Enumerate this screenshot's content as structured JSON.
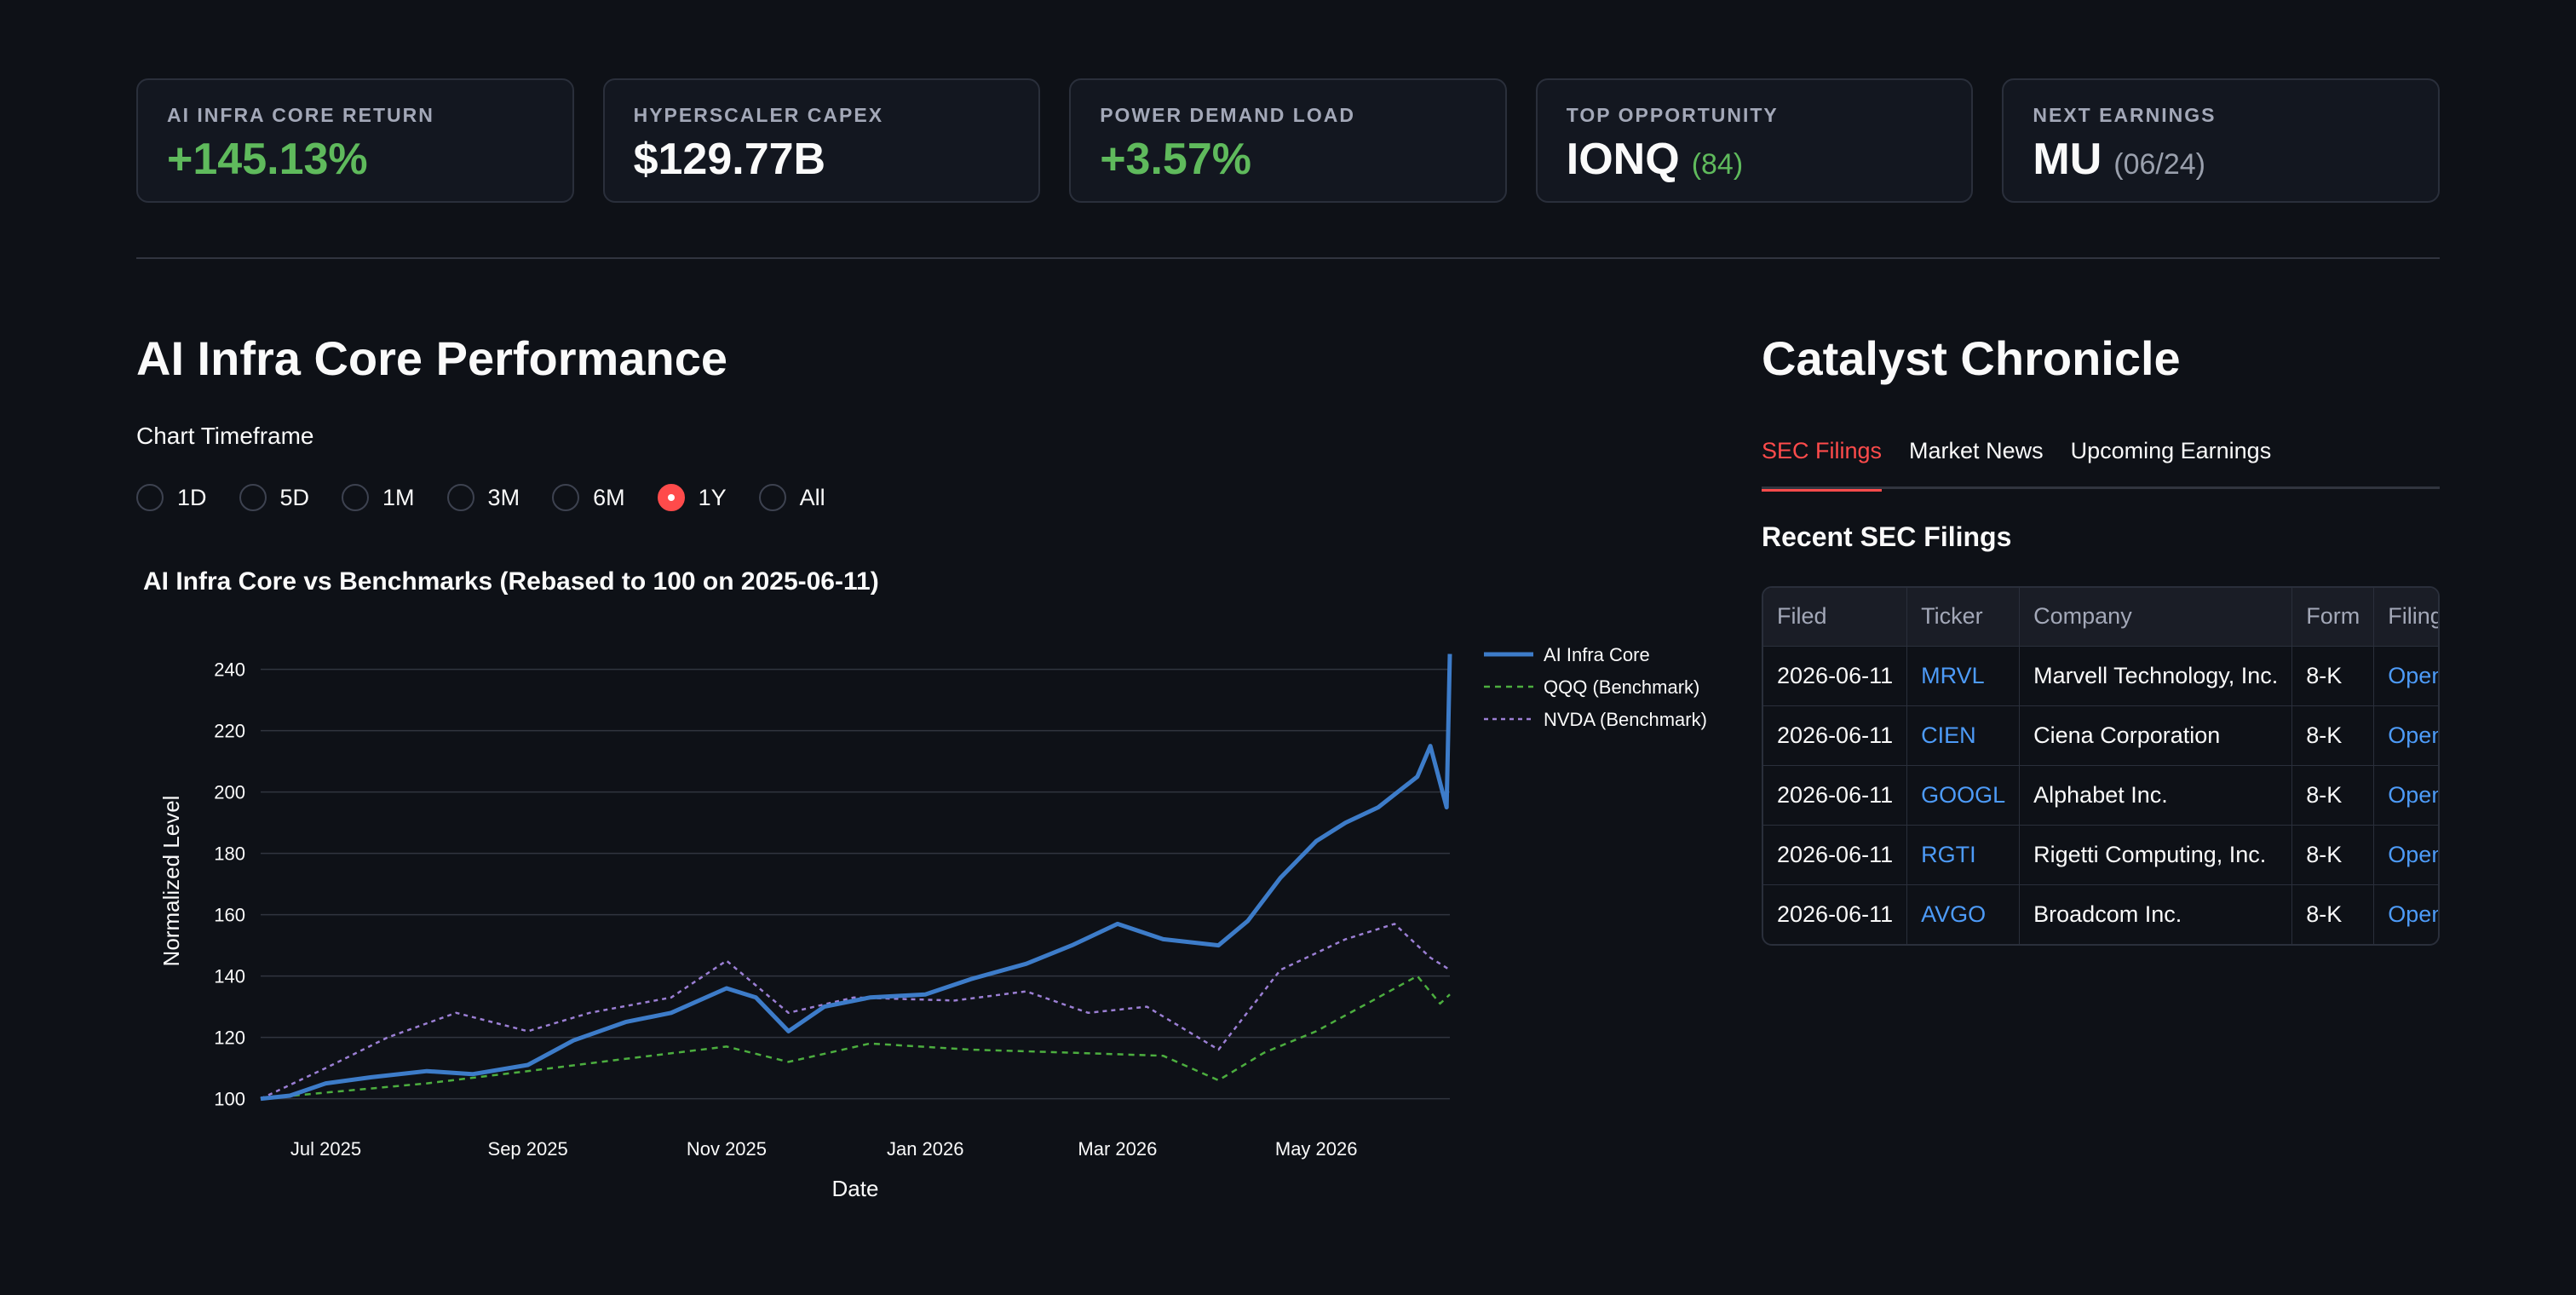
{
  "metrics": [
    {
      "label": "AI INFRA CORE RETURN",
      "value": "+145.13%",
      "sub": ""
    },
    {
      "label": "HYPERSCALER CAPEX",
      "value": "$129.77B",
      "sub": ""
    },
    {
      "label": "POWER DEMAND LOAD",
      "value": "+3.57%",
      "sub": ""
    },
    {
      "label": "TOP OPPORTUNITY",
      "value": "IONQ",
      "sub": "(84)"
    },
    {
      "label": "NEXT EARNINGS",
      "value": "MU",
      "sub": "(06/24)"
    }
  ],
  "left": {
    "title": "AI Infra Core Performance",
    "timeframe_label": "Chart Timeframe",
    "timeframes": [
      "1D",
      "5D",
      "1M",
      "3M",
      "6M",
      "1Y",
      "All"
    ],
    "selected_timeframe": "1Y"
  },
  "right": {
    "title": "Catalyst Chronicle",
    "tabs": [
      "SEC Filings",
      "Market News",
      "Upcoming Earnings"
    ],
    "active_tab": "SEC Filings",
    "section_heading": "Recent SEC Filings",
    "columns": [
      "Filed",
      "Ticker",
      "Company",
      "Form",
      "Filing"
    ],
    "rows": [
      {
        "filed": "2026-06-11",
        "ticker": "MRVL",
        "company": "Marvell Technology, Inc.",
        "form": "8-K",
        "filing": "Open"
      },
      {
        "filed": "2026-06-11",
        "ticker": "CIEN",
        "company": "Ciena Corporation",
        "form": "8-K",
        "filing": "Open"
      },
      {
        "filed": "2026-06-11",
        "ticker": "GOOGL",
        "company": "Alphabet Inc.",
        "form": "8-K",
        "filing": "Open"
      },
      {
        "filed": "2026-06-11",
        "ticker": "RGTI",
        "company": "Rigetti Computing, Inc.",
        "form": "8-K",
        "filing": "Open"
      },
      {
        "filed": "2026-06-11",
        "ticker": "AVGO",
        "company": "Broadcom Inc.",
        "form": "8-K",
        "filing": "Open"
      }
    ]
  },
  "colors": {
    "positive": "#5fba5c",
    "accent": "#ff4b4b",
    "link": "#4d9bf8",
    "core_series": "#3d7cc9",
    "qqq_series": "#4cae3f",
    "nvda_series": "#9b7fd4"
  },
  "chart_data": {
    "type": "line",
    "title": "AI Infra Core vs Benchmarks (Rebased to 100 on 2025-06-11)",
    "xlabel": "Date",
    "ylabel": "Normalized Level",
    "x_ticks": [
      "Jul 2025",
      "Sep 2025",
      "Nov 2025",
      "Jan 2026",
      "Mar 2026",
      "May 2026"
    ],
    "y_ticks": [
      100,
      120,
      140,
      160,
      180,
      200,
      220,
      240
    ],
    "ylim": [
      96,
      246
    ],
    "xlim": [
      "2025-06-11",
      "2026-06-11"
    ],
    "grid": true,
    "legend_position": "top-right",
    "series": [
      {
        "name": "AI Infra Core",
        "style": "solid",
        "x": [
          "2025-06-11",
          "2025-06-20",
          "2025-07-01",
          "2025-07-15",
          "2025-08-01",
          "2025-08-15",
          "2025-09-01",
          "2025-09-15",
          "2025-10-01",
          "2025-10-15",
          "2025-11-01",
          "2025-11-10",
          "2025-11-20",
          "2025-12-01",
          "2025-12-15",
          "2026-01-01",
          "2026-01-15",
          "2026-02-01",
          "2026-02-15",
          "2026-03-01",
          "2026-03-15",
          "2026-04-01",
          "2026-04-10",
          "2026-04-20",
          "2026-05-01",
          "2026-05-10",
          "2026-05-20",
          "2026-06-01",
          "2026-06-05",
          "2026-06-10",
          "2026-06-11"
        ],
        "values": [
          100,
          101,
          105,
          107,
          109,
          108,
          111,
          119,
          125,
          128,
          136,
          133,
          122,
          130,
          133,
          134,
          139,
          144,
          150,
          157,
          152,
          150,
          158,
          172,
          184,
          190,
          195,
          205,
          215,
          195,
          245
        ]
      },
      {
        "name": "QQQ (Benchmark)",
        "style": "dashed",
        "x": [
          "2025-06-11",
          "2025-07-01",
          "2025-08-01",
          "2025-09-01",
          "2025-10-01",
          "2025-11-01",
          "2025-11-20",
          "2025-12-15",
          "2026-01-15",
          "2026-02-15",
          "2026-03-15",
          "2026-04-01",
          "2026-04-15",
          "2026-05-01",
          "2026-05-20",
          "2026-06-01",
          "2026-06-08",
          "2026-06-11"
        ],
        "values": [
          100,
          102,
          105,
          109,
          113,
          117,
          112,
          118,
          116,
          115,
          114,
          106,
          115,
          122,
          133,
          140,
          131,
          134
        ]
      },
      {
        "name": "NVDA (Benchmark)",
        "style": "dotted",
        "x": [
          "2025-06-11",
          "2025-07-01",
          "2025-07-20",
          "2025-08-10",
          "2025-09-01",
          "2025-09-20",
          "2025-10-15",
          "2025-11-01",
          "2025-11-20",
          "2025-12-10",
          "2026-01-10",
          "2026-02-01",
          "2026-02-20",
          "2026-03-10",
          "2026-04-01",
          "2026-04-20",
          "2026-05-10",
          "2026-05-25",
          "2026-06-05",
          "2026-06-11"
        ],
        "values": [
          100,
          110,
          120,
          128,
          122,
          128,
          133,
          145,
          128,
          133,
          132,
          135,
          128,
          130,
          116,
          142,
          152,
          157,
          146,
          142
        ]
      }
    ]
  }
}
